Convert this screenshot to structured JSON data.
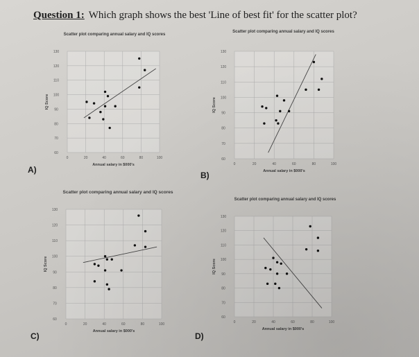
{
  "question": {
    "label": "Question 1:",
    "text": "Which graph shows the best 'Line of best fit' for the scatter plot?"
  },
  "options": [
    "A)",
    "B)",
    "C)",
    "D)"
  ],
  "chart_data": [
    {
      "type": "scatter",
      "option": "A)",
      "title": "Scatter plot comparing annual salary and IQ scores",
      "xlabel": "Annual salary in $000's",
      "ylabel": "IQ Score",
      "xlim": [
        0,
        100
      ],
      "ylim": [
        60,
        130
      ],
      "xticks": [
        0,
        20,
        40,
        60,
        80,
        100
      ],
      "yticks": [
        60,
        70,
        80,
        90,
        100,
        110,
        120,
        130
      ],
      "points": [
        [
          78,
          125
        ],
        [
          84,
          117
        ],
        [
          78,
          105
        ],
        [
          41,
          102
        ],
        [
          44,
          99
        ],
        [
          21,
          95
        ],
        [
          29,
          94
        ],
        [
          41,
          92
        ],
        [
          52,
          92
        ],
        [
          36,
          88
        ],
        [
          24,
          84
        ],
        [
          39,
          83
        ],
        [
          46,
          77
        ]
      ],
      "line": [
        [
          18,
          84
        ],
        [
          96,
          118
        ]
      ]
    },
    {
      "type": "scatter",
      "option": "B)",
      "title": "Scatter plot comparing annual salary and IQ scores",
      "xlabel": "Annual salary in $000's",
      "ylabel": "IQ Score",
      "xlim": [
        0,
        100
      ],
      "ylim": [
        60,
        130
      ],
      "xticks": [
        0,
        20,
        40,
        60,
        80,
        100
      ],
      "yticks": [
        60,
        70,
        80,
        90,
        100,
        110,
        120,
        130
      ],
      "points": [
        [
          80,
          123
        ],
        [
          88,
          112
        ],
        [
          72,
          105
        ],
        [
          85,
          105
        ],
        [
          43,
          101
        ],
        [
          50,
          98
        ],
        [
          28,
          94
        ],
        [
          32,
          93
        ],
        [
          46,
          91
        ],
        [
          55,
          91
        ],
        [
          42,
          85
        ],
        [
          30,
          83
        ],
        [
          44,
          83
        ]
      ],
      "line": [
        [
          34,
          64
        ],
        [
          82,
          128
        ]
      ]
    },
    {
      "type": "scatter",
      "option": "C)",
      "title": "Scatter plot comparing annual salary and IQ scores",
      "xlabel": "Annual salary in $000's",
      "ylabel": "IQ Score",
      "xlim": [
        0,
        100
      ],
      "ylim": [
        60,
        130
      ],
      "xticks": [
        0,
        20,
        40,
        60,
        80,
        100
      ],
      "yticks": [
        60,
        70,
        80,
        90,
        100,
        110,
        120,
        130
      ],
      "points": [
        [
          76,
          126
        ],
        [
          83,
          116
        ],
        [
          72,
          107
        ],
        [
          83,
          106
        ],
        [
          41,
          100
        ],
        [
          43,
          98
        ],
        [
          48,
          98
        ],
        [
          30,
          95
        ],
        [
          34,
          94
        ],
        [
          41,
          91
        ],
        [
          58,
          91
        ],
        [
          30,
          84
        ],
        [
          43,
          82
        ],
        [
          45,
          79
        ]
      ],
      "line": [
        [
          18,
          96
        ],
        [
          95,
          106
        ]
      ]
    },
    {
      "type": "scatter",
      "option": "D)",
      "title": "Scatter plot comparing annual salary and IQ scores",
      "xlabel": "Annual salary in $000's",
      "ylabel": "IQ Score",
      "xlim": [
        0,
        100
      ],
      "ylim": [
        60,
        130
      ],
      "xticks": [
        0,
        20,
        40,
        60,
        80,
        100
      ],
      "yticks": [
        60,
        70,
        80,
        90,
        100,
        110,
        120,
        130
      ],
      "points": [
        [
          78,
          123
        ],
        [
          86,
          115
        ],
        [
          74,
          107
        ],
        [
          86,
          106
        ],
        [
          40,
          101
        ],
        [
          44,
          98
        ],
        [
          48,
          97
        ],
        [
          32,
          94
        ],
        [
          37,
          93
        ],
        [
          44,
          90
        ],
        [
          54,
          90
        ],
        [
          34,
          83
        ],
        [
          42,
          83
        ],
        [
          46,
          80
        ]
      ],
      "line": [
        [
          30,
          115
        ],
        [
          90,
          66
        ]
      ]
    }
  ]
}
